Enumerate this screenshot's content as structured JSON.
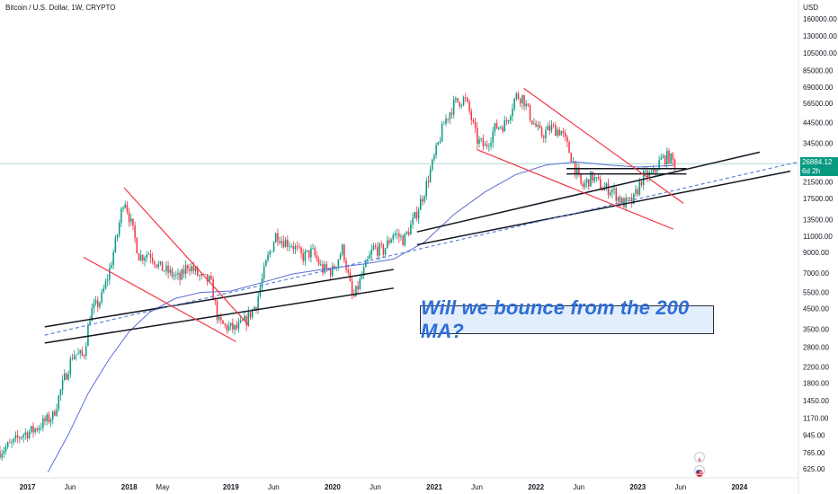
{
  "header": {
    "symbol_title": "Bitcoin / U.S. Dollar, 1W, CRYPTO",
    "currency": "USD"
  },
  "price_tag": {
    "price": "26884.12",
    "countdown": "6d 2h",
    "color": "#089981"
  },
  "callout": {
    "text": "Will we bounce from the 200 MA?"
  },
  "icons": [
    "lightning-icon",
    "flag-icon"
  ],
  "chart_data": {
    "type": "candlestick",
    "y_scale": "log",
    "ylim": [
      560,
      185000
    ],
    "y_ticks": [
      "160000.00",
      "130000.00",
      "105000.00",
      "85000.00",
      "69000.00",
      "56500.00",
      "44500.00",
      "34500.00",
      "21500.00",
      "17500.00",
      "13500.00",
      "11000.00",
      "9000.00",
      "7000.00",
      "5500.00",
      "4500.00",
      "3500.00",
      "2800.00",
      "2200.00",
      "1800.00",
      "1450.00",
      "1170.00",
      "945.00",
      "765.00",
      "625.00"
    ],
    "x_ticks": [
      {
        "label": "2017",
        "t": 2017.0,
        "bold": true
      },
      {
        "label": "Jun",
        "t": 2017.42
      },
      {
        "label": "2018",
        "t": 2018.0,
        "bold": true
      },
      {
        "label": "May",
        "t": 2018.33
      },
      {
        "label": "2019",
        "t": 2019.0,
        "bold": true
      },
      {
        "label": "Jun",
        "t": 2019.42
      },
      {
        "label": "2020",
        "t": 2020.0,
        "bold": true
      },
      {
        "label": "Jun",
        "t": 2020.42
      },
      {
        "label": "2021",
        "t": 2021.0,
        "bold": true
      },
      {
        "label": "Jun",
        "t": 2021.42
      },
      {
        "label": "2022",
        "t": 2022.0,
        "bold": true
      },
      {
        "label": "Jun",
        "t": 2022.42
      },
      {
        "label": "2023",
        "t": 2023.0,
        "bold": true
      },
      {
        "label": "Jun",
        "t": 2023.42
      },
      {
        "label": "2024",
        "t": 2024.0,
        "bold": true
      }
    ],
    "xlim": [
      2016.73,
      2024.58
    ],
    "current_price": 26884.12,
    "price_path": [
      [
        2016.73,
        780
      ],
      [
        2016.85,
        850
      ],
      [
        2016.95,
        960
      ],
      [
        2017.05,
        1000
      ],
      [
        2017.15,
        1100
      ],
      [
        2017.25,
        1200
      ],
      [
        2017.35,
        1800
      ],
      [
        2017.45,
        2600
      ],
      [
        2017.55,
        2500
      ],
      [
        2017.62,
        4300
      ],
      [
        2017.72,
        5000
      ],
      [
        2017.8,
        7000
      ],
      [
        2017.88,
        11000
      ],
      [
        2017.95,
        18000
      ],
      [
        2018.0,
        14000
      ],
      [
        2018.05,
        11000
      ],
      [
        2018.1,
        8500
      ],
      [
        2018.2,
        9000
      ],
      [
        2018.3,
        7500
      ],
      [
        2018.4,
        7000
      ],
      [
        2018.5,
        6500
      ],
      [
        2018.58,
        7800
      ],
      [
        2018.7,
        6600
      ],
      [
        2018.8,
        6300
      ],
      [
        2018.88,
        3800
      ],
      [
        2018.95,
        3600
      ],
      [
        2019.05,
        3500
      ],
      [
        2019.15,
        3900
      ],
      [
        2019.25,
        4800
      ],
      [
        2019.35,
        8000
      ],
      [
        2019.45,
        11500
      ],
      [
        2019.5,
        10500
      ],
      [
        2019.6,
        10000
      ],
      [
        2019.7,
        8500
      ],
      [
        2019.8,
        9100
      ],
      [
        2019.9,
        7300
      ],
      [
        2020.0,
        7200
      ],
      [
        2020.1,
        9500
      ],
      [
        2020.2,
        5000
      ],
      [
        2020.3,
        7000
      ],
      [
        2020.4,
        9500
      ],
      [
        2020.5,
        9200
      ],
      [
        2020.6,
        11500
      ],
      [
        2020.7,
        10500
      ],
      [
        2020.8,
        13500
      ],
      [
        2020.9,
        19000
      ],
      [
        2021.0,
        29000
      ],
      [
        2021.1,
        45000
      ],
      [
        2021.2,
        57000
      ],
      [
        2021.3,
        60000
      ],
      [
        2021.35,
        50000
      ],
      [
        2021.42,
        36000
      ],
      [
        2021.5,
        33000
      ],
      [
        2021.6,
        42000
      ],
      [
        2021.7,
        44000
      ],
      [
        2021.8,
        62000
      ],
      [
        2021.87,
        61000
      ],
      [
        2021.95,
        47000
      ],
      [
        2022.05,
        38000
      ],
      [
        2022.15,
        42000
      ],
      [
        2022.25,
        40000
      ],
      [
        2022.35,
        29000
      ],
      [
        2022.45,
        20000
      ],
      [
        2022.55,
        23000
      ],
      [
        2022.65,
        20000
      ],
      [
        2022.75,
        19500
      ],
      [
        2022.85,
        16500
      ],
      [
        2022.95,
        16800
      ],
      [
        2023.05,
        23000
      ],
      [
        2023.15,
        23500
      ],
      [
        2023.22,
        28000
      ],
      [
        2023.3,
        29500
      ],
      [
        2023.35,
        27500
      ],
      [
        2023.37,
        26884
      ]
    ],
    "ma200_path": [
      [
        2017.2,
        600
      ],
      [
        2017.4,
        950
      ],
      [
        2017.6,
        1600
      ],
      [
        2017.8,
        2400
      ],
      [
        2018.0,
        3400
      ],
      [
        2018.2,
        4300
      ],
      [
        2018.45,
        5100
      ],
      [
        2018.7,
        5500
      ],
      [
        2019.0,
        5600
      ],
      [
        2019.3,
        6200
      ],
      [
        2019.6,
        6900
      ],
      [
        2019.9,
        7300
      ],
      [
        2020.3,
        7800
      ],
      [
        2020.6,
        8300
      ],
      [
        2020.9,
        10200
      ],
      [
        2021.2,
        14500
      ],
      [
        2021.5,
        19000
      ],
      [
        2021.8,
        23500
      ],
      [
        2022.1,
        26500
      ],
      [
        2022.4,
        27500
      ],
      [
        2022.7,
        26500
      ],
      [
        2023.0,
        25800
      ],
      [
        2023.35,
        26300
      ]
    ],
    "trendlines": [
      {
        "color": "#131722",
        "dashed": false,
        "points": [
          [
            2017.17,
            3600
          ],
          [
            2020.6,
            7300
          ]
        ]
      },
      {
        "color": "#131722",
        "dashed": false,
        "points": [
          [
            2017.17,
            2950
          ],
          [
            2020.6,
            5800
          ]
        ]
      },
      {
        "color": "#131722",
        "dashed": false,
        "points": [
          [
            2020.83,
            11600
          ],
          [
            2024.2,
            31000
          ]
        ]
      },
      {
        "color": "#131722",
        "dashed": false,
        "points": [
          [
            2020.83,
            9900
          ],
          [
            2024.5,
            24500
          ]
        ]
      },
      {
        "color": "#131722",
        "dashed": false,
        "points": [
          [
            2022.3,
            25300
          ],
          [
            2023.48,
            25300
          ]
        ]
      },
      {
        "color": "#131722",
        "dashed": false,
        "points": [
          [
            2022.3,
            23700
          ],
          [
            2023.48,
            23700
          ]
        ]
      },
      {
        "color": "#5b84d6",
        "dashed": true,
        "points": [
          [
            2017.17,
            3250
          ],
          [
            2024.58,
            27500
          ]
        ]
      },
      {
        "color": "#f23645",
        "dashed": false,
        "points": [
          [
            2017.95,
            20000
          ],
          [
            2019.18,
            3650
          ]
        ]
      },
      {
        "color": "#f23645",
        "dashed": false,
        "points": [
          [
            2017.55,
            8500
          ],
          [
            2019.05,
            3000
          ]
        ]
      },
      {
        "color": "#f23645",
        "dashed": false,
        "points": [
          [
            2021.88,
            68000
          ],
          [
            2023.45,
            16500
          ]
        ]
      },
      {
        "color": "#f23645",
        "dashed": false,
        "points": [
          [
            2021.42,
            32000
          ],
          [
            2023.35,
            12000
          ]
        ]
      }
    ]
  }
}
